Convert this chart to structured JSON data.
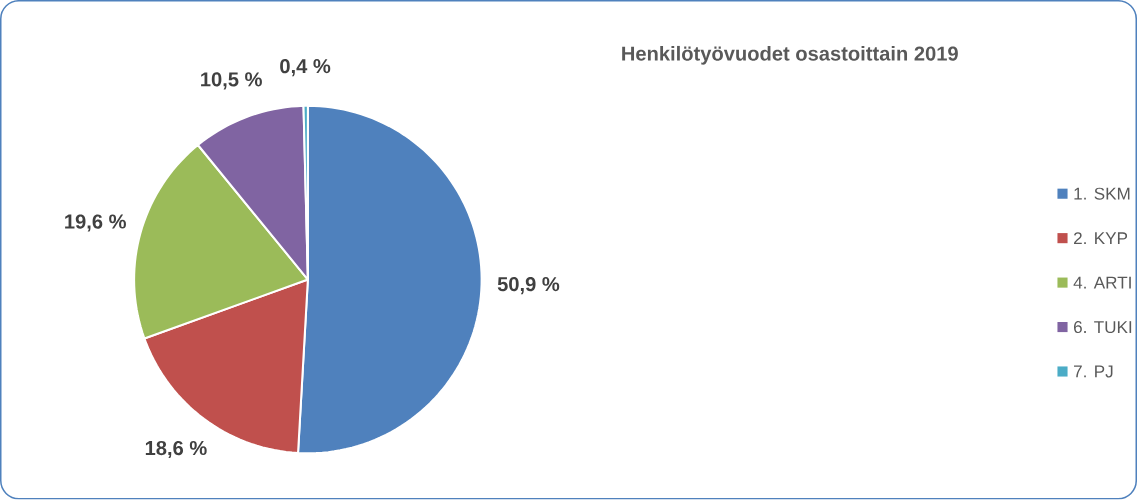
{
  "chart_data": {
    "type": "pie",
    "title": "Henkilötyövuodet osastoittain 2019",
    "categories": [
      "1. SKM",
      "2. KYP",
      "4. ARTI",
      "6. TUKI",
      "7. PJ"
    ],
    "values": [
      50.9,
      18.6,
      19.6,
      10.5,
      0.4
    ],
    "colors": [
      "#4f81bd",
      "#c0504d",
      "#9bbb59",
      "#8064a2",
      "#4bacc6"
    ],
    "value_labels": [
      "50,9 %",
      "18,6 %",
      "19,6 %",
      "10,5 %",
      "0,4 %"
    ],
    "legend": "right"
  }
}
